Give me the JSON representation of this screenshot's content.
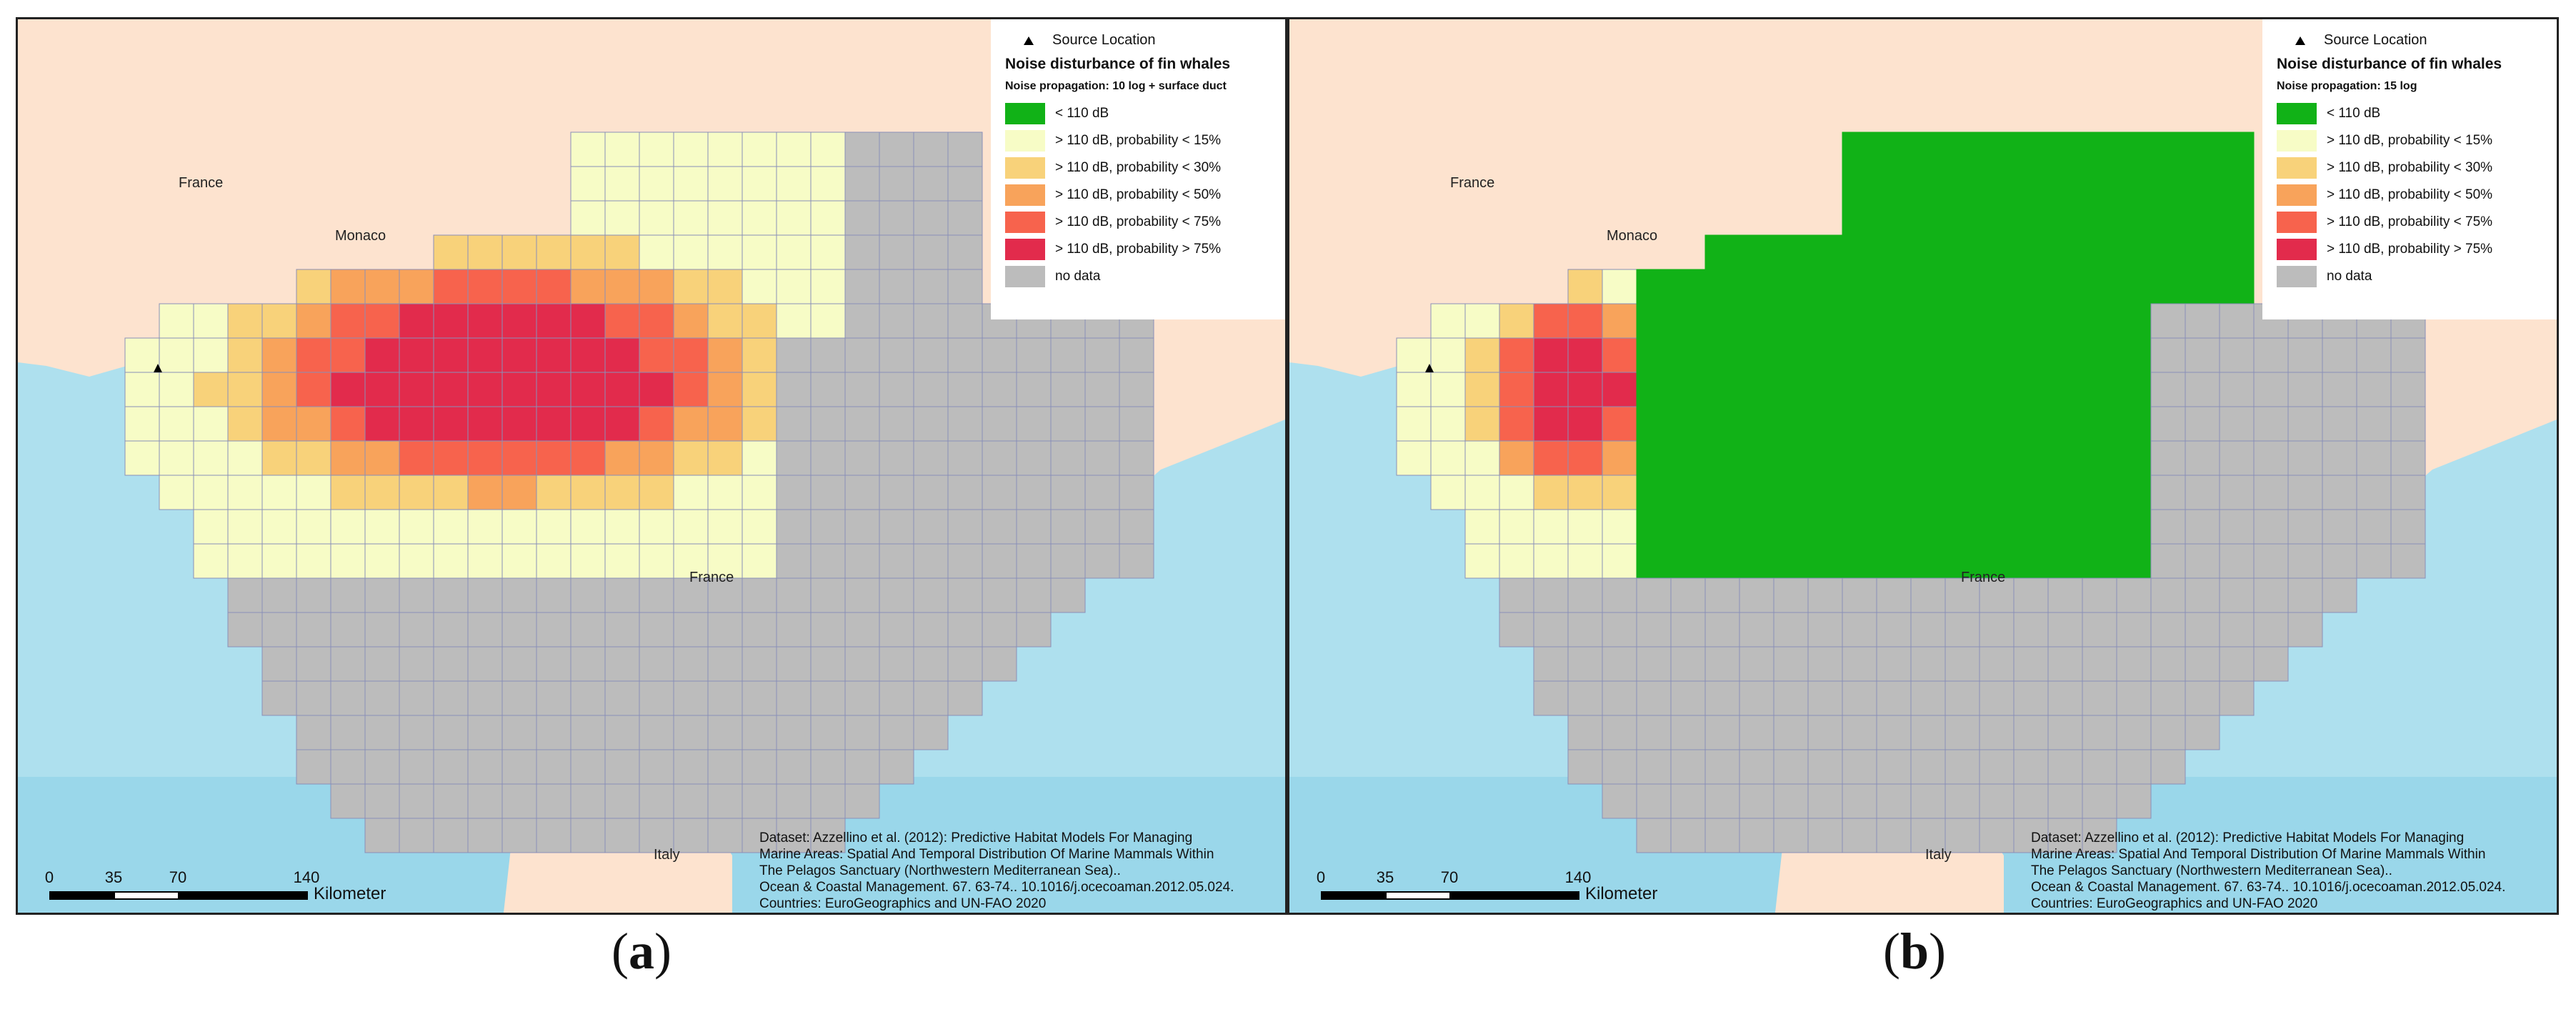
{
  "panels": [
    {
      "id": "a",
      "caption_letter": "a",
      "legend": {
        "source_label": "Source Location",
        "title": "Noise disturbance of fin whales",
        "subtitle": "Noise propagation: 10 log + surface duct",
        "items": [
          {
            "label": "< 110 dB",
            "color": "#11b217"
          },
          {
            "label": "> 110 dB, probability < 15%",
            "color": "#f7fcc6"
          },
          {
            "label": "> 110 dB, probability < 30%",
            "color": "#f8d27a"
          },
          {
            "label": "> 110 dB, probability < 50%",
            "color": "#f8a35b"
          },
          {
            "label": "> 110 dB, probability < 75%",
            "color": "#f7634d"
          },
          {
            "label": "> 110 dB, probability > 75%",
            "color": "#e22b4c"
          },
          {
            "label": "no data",
            "color": "#bcbcbc"
          }
        ]
      },
      "places": {
        "france_north": "France",
        "monaco": "Monaco",
        "france_corsica": "France",
        "italy": "Italy"
      },
      "dataset_lines": [
        "Dataset: Azzellino et al. (2012): Predictive Habitat Models For Managing",
        "Marine Areas: Spatial And Temporal Distribution Of Marine Mammals Within",
        "The Pelagos Sanctuary (Northwestern Mediterranean Sea)..",
        "Ocean & Coastal Management. 67. 63-74.. 10.1016/j.ocecoaman.2012.05.024.",
        "Countries: EuroGeographics and UN-FAO 2020"
      ],
      "scale": {
        "ticks": [
          "0",
          "35",
          "70",
          "140"
        ],
        "unit": "Kilometer"
      }
    },
    {
      "id": "b",
      "caption_letter": "b",
      "legend": {
        "source_label": "Source Location",
        "title": "Noise disturbance of fin whales",
        "subtitle": "Noise propagation: 15 log",
        "items": [
          {
            "label": "< 110 dB",
            "color": "#11b217"
          },
          {
            "label": "> 110 dB, probability < 15%",
            "color": "#f7fcc6"
          },
          {
            "label": "> 110 dB, probability < 30%",
            "color": "#f8d27a"
          },
          {
            "label": "> 110 dB, probability < 50%",
            "color": "#f8a35b"
          },
          {
            "label": "> 110 dB, probability < 75%",
            "color": "#f7634d"
          },
          {
            "label": "> 110 dB, probability > 75%",
            "color": "#e22b4c"
          },
          {
            "label": "no data",
            "color": "#bcbcbc"
          }
        ]
      },
      "places": {
        "france_north": "France",
        "monaco": "Monaco",
        "france_corsica": "France",
        "italy": "Italy"
      },
      "dataset_lines": [
        "Dataset: Azzellino et al. (2012): Predictive Habitat Models For Managing",
        "Marine Areas: Spatial And Temporal Distribution Of Marine Mammals Within",
        "The Pelagos Sanctuary (Northwestern Mediterranean Sea)..",
        "Ocean & Coastal Management. 67. 63-74.. 10.1016/j.ocecoaman.2012.05.024.",
        "Countries: EuroGeographics and UN-FAO 2020"
      ],
      "scale": {
        "ticks": [
          "0",
          "35",
          "70",
          "140"
        ],
        "unit": "Kilometer"
      }
    }
  ],
  "colors": {
    "sea": "#aee0ee",
    "land": "#fde3cf",
    "grid_line": "#8a8fb8",
    "no_data": "#bcbcbc"
  }
}
